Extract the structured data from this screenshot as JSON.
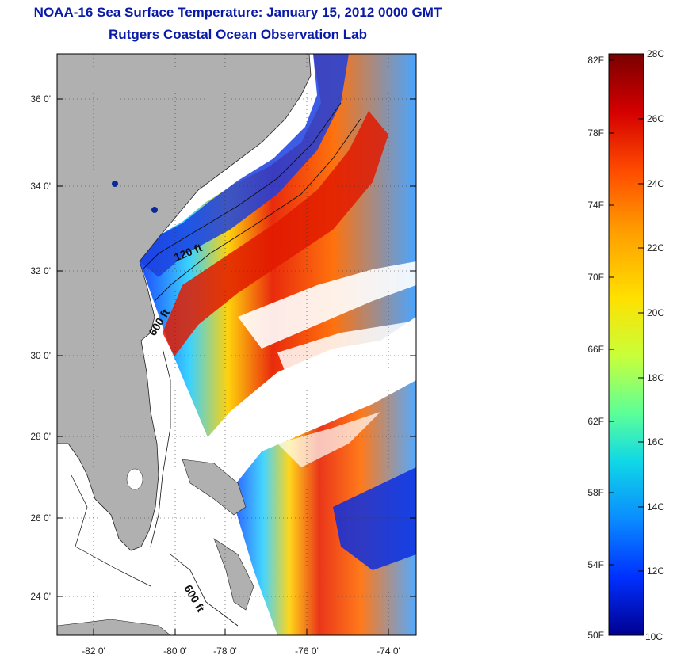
{
  "title": "NOAA-16 Sea Surface Temperature:  January 15, 2012 0000 GMT",
  "subtitle": "Rutgers Coastal Ocean Observation Lab",
  "lat_ticks": [
    "36 0'",
    "34 0'",
    "32 0'",
    "30 0'",
    "28 0'",
    "26 0'",
    "24 0'"
  ],
  "lon_ticks": [
    "-82 0'",
    "-80 0'",
    "-78 0'",
    "-76 0'",
    "-74 0'"
  ],
  "contours": {
    "label_120": "120 ft",
    "label_600a": "600 ft",
    "label_600b": "600 ft"
  },
  "colorbar": {
    "fahrenheit": [
      "82F",
      "78F",
      "74F",
      "70F",
      "66F",
      "62F",
      "58F",
      "54F",
      "50F"
    ],
    "celsius": [
      "28C",
      "26C",
      "24C",
      "22C",
      "20C",
      "18C",
      "16C",
      "14C",
      "12C",
      "10C"
    ],
    "colors": [
      "#7a0000",
      "#d40000",
      "#ff4a00",
      "#ff9a00",
      "#ffe000",
      "#c8ff3a",
      "#5aff9a",
      "#10d8e6",
      "#0a8cff",
      "#0030ff",
      "#000090"
    ]
  },
  "colors": {
    "land": "#b0b0b0",
    "title": "#0a1aa8"
  }
}
